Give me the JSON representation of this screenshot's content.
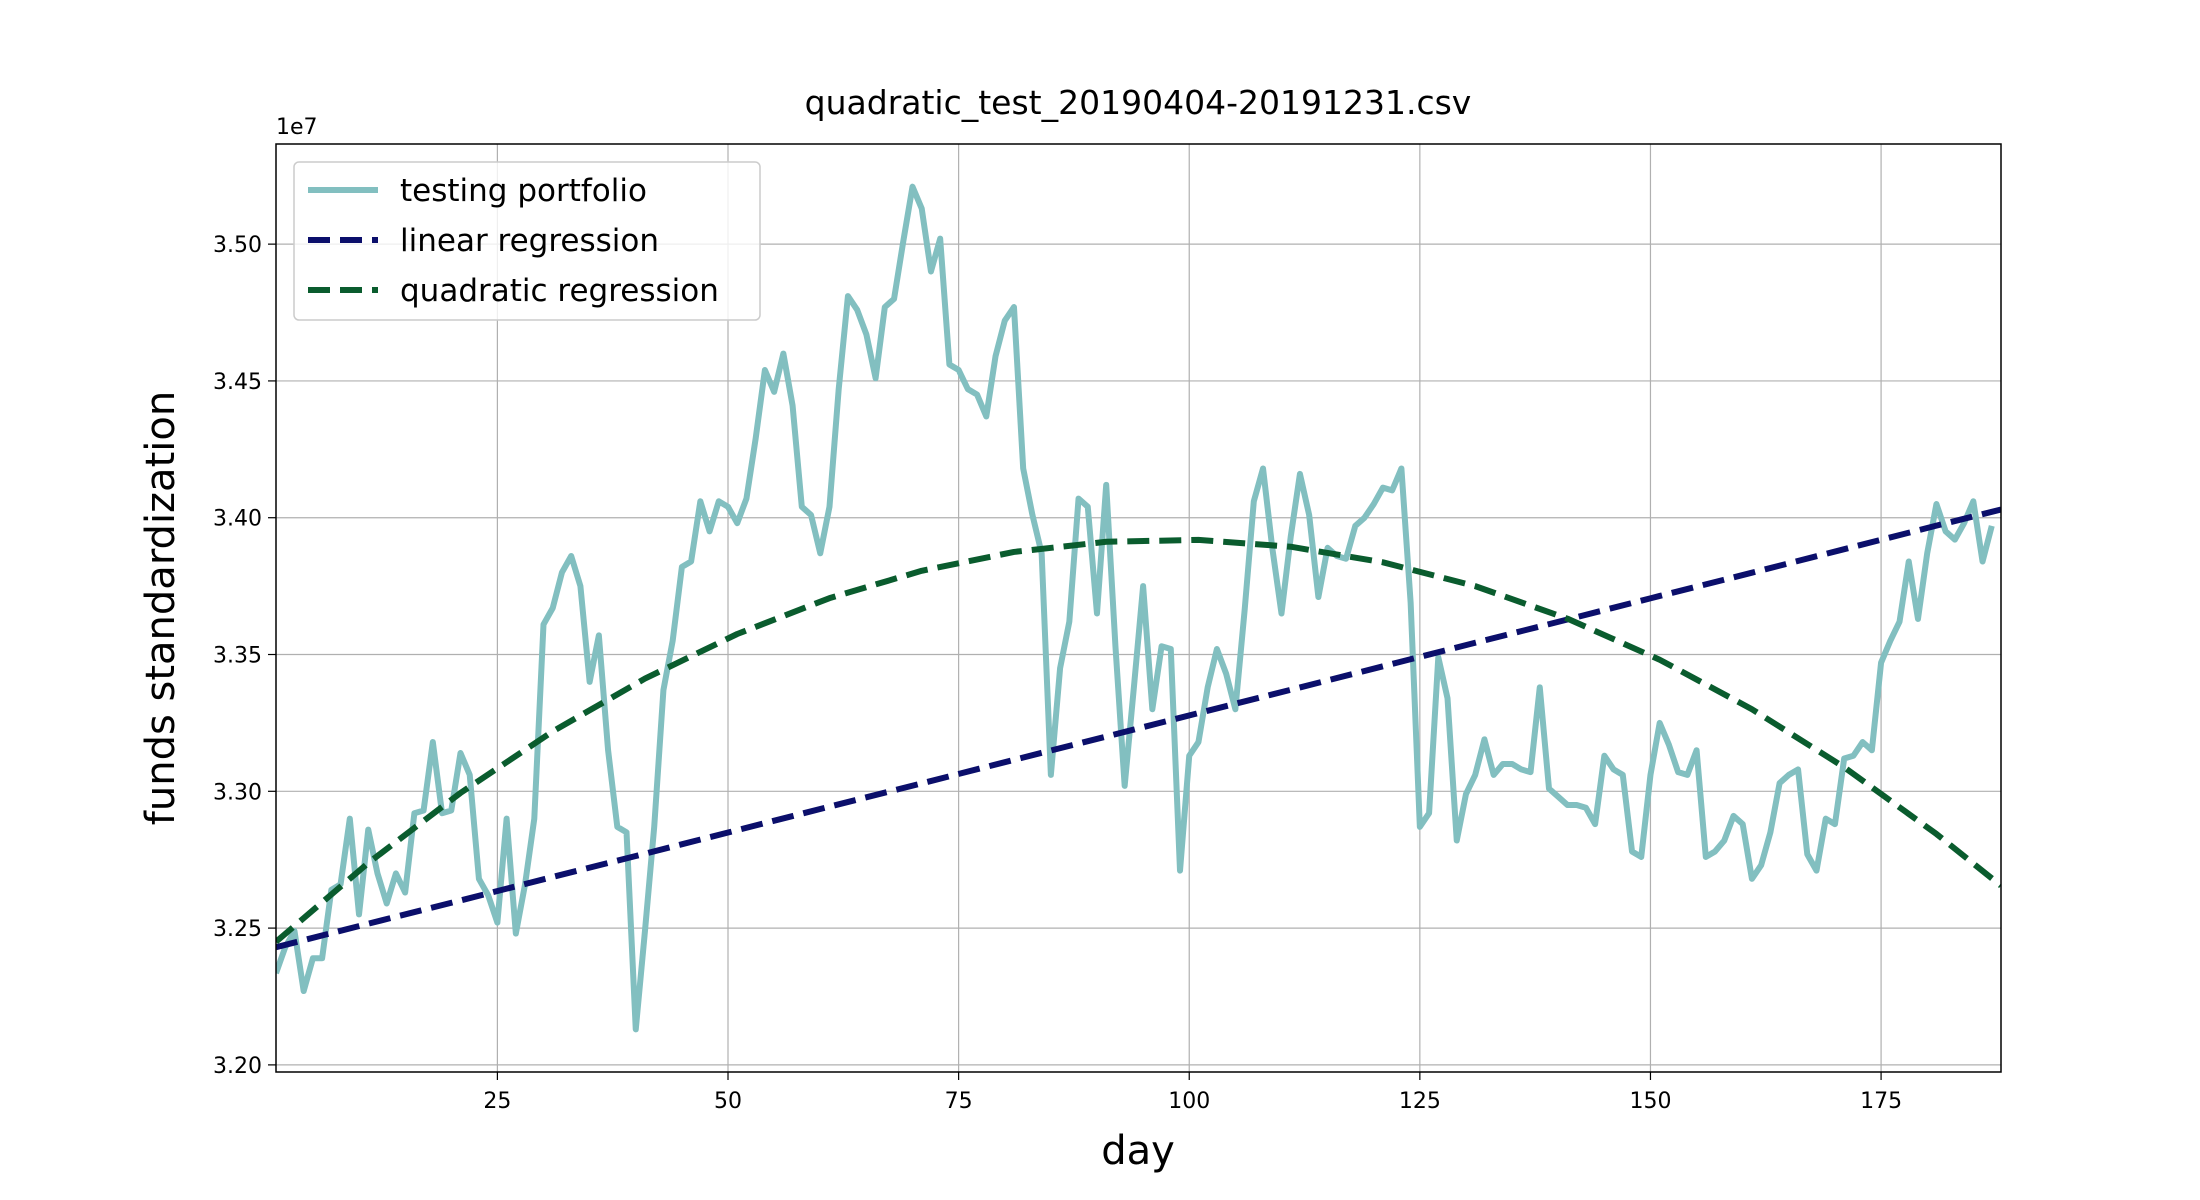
{
  "chart_data": {
    "type": "line",
    "title": "quadratic_test_20190404-20191231.csv",
    "xlabel": "day",
    "ylabel": "funds standardization",
    "y_offset_label": "1e7",
    "xlim": [
      1,
      188
    ],
    "ylim": [
      3.1974,
      3.5366
    ],
    "xticks": [
      25,
      50,
      75,
      100,
      125,
      150,
      175
    ],
    "yticks": [
      {
        "value": 3.2,
        "label": "3.20"
      },
      {
        "value": 3.25,
        "label": "3.25"
      },
      {
        "value": 3.3,
        "label": "3.30"
      },
      {
        "value": 3.35,
        "label": "3.35"
      },
      {
        "value": 3.4,
        "label": "3.40"
      },
      {
        "value": 3.45,
        "label": "3.45"
      },
      {
        "value": 3.5,
        "label": "3.50"
      }
    ],
    "grid": true,
    "legend": "upper left",
    "series": [
      {
        "name": "testing portfolio",
        "color": "#82bfc0",
        "linestyle": "solid",
        "x": [
          1,
          2,
          3,
          4,
          5,
          6,
          7,
          8,
          9,
          10,
          11,
          12,
          13,
          14,
          15,
          16,
          17,
          18,
          19,
          20,
          21,
          22,
          23,
          24,
          25,
          26,
          27,
          28,
          29,
          30,
          31,
          32,
          33,
          34,
          35,
          36,
          37,
          38,
          39,
          40,
          41,
          42,
          43,
          44,
          45,
          46,
          47,
          48,
          49,
          50,
          51,
          52,
          53,
          54,
          55,
          56,
          57,
          58,
          59,
          60,
          61,
          62,
          63,
          64,
          65,
          66,
          67,
          68,
          69,
          70,
          71,
          72,
          73,
          74,
          75,
          76,
          77,
          78,
          79,
          80,
          81,
          82,
          83,
          84,
          85,
          86,
          87,
          88,
          89,
          90,
          91,
          92,
          93,
          94,
          95,
          96,
          97,
          98,
          99,
          100,
          101,
          102,
          103,
          104,
          105,
          106,
          107,
          108,
          109,
          110,
          111,
          112,
          113,
          114,
          115,
          116,
          117,
          118,
          119,
          120,
          121,
          122,
          123,
          124,
          125,
          126,
          127,
          128,
          129,
          130,
          131,
          132,
          133,
          134,
          135,
          136,
          137,
          138,
          139,
          140,
          141,
          142,
          143,
          144,
          145,
          146,
          147,
          148,
          149,
          150,
          151,
          152,
          153,
          154,
          155,
          156,
          157,
          158,
          159,
          160,
          161,
          162,
          163,
          164,
          165,
          166,
          167,
          168,
          169,
          170,
          171,
          172,
          173,
          174,
          175,
          176,
          177,
          178,
          179,
          180,
          181,
          182,
          183,
          184,
          185,
          186,
          187
        ],
        "values": [
          3.2335,
          3.243,
          3.249,
          3.227,
          3.239,
          3.239,
          3.264,
          3.266,
          3.29,
          3.255,
          3.286,
          3.27,
          3.259,
          3.27,
          3.263,
          3.292,
          3.293,
          3.318,
          3.292,
          3.293,
          3.314,
          3.306,
          3.268,
          3.262,
          3.252,
          3.29,
          3.248,
          3.266,
          3.29,
          3.361,
          3.367,
          3.38,
          3.386,
          3.375,
          3.34,
          3.357,
          3.315,
          3.287,
          3.285,
          3.213,
          3.249,
          3.287,
          3.337,
          3.355,
          3.382,
          3.384,
          3.406,
          3.395,
          3.406,
          3.404,
          3.398,
          3.407,
          3.429,
          3.454,
          3.446,
          3.46,
          3.441,
          3.404,
          3.401,
          3.387,
          3.404,
          3.447,
          3.481,
          3.476,
          3.467,
          3.451,
          3.477,
          3.48,
          3.501,
          3.521,
          3.513,
          3.49,
          3.502,
          3.456,
          3.454,
          3.447,
          3.445,
          3.437,
          3.459,
          3.472,
          3.477,
          3.418,
          3.401,
          3.387,
          3.306,
          3.345,
          3.362,
          3.407,
          3.404,
          3.365,
          3.412,
          3.353,
          3.302,
          3.338,
          3.375,
          3.33,
          3.353,
          3.352,
          3.271,
          3.313,
          3.318,
          3.338,
          3.352,
          3.343,
          3.33,
          3.366,
          3.406,
          3.418,
          3.389,
          3.365,
          3.393,
          3.416,
          3.401,
          3.371,
          3.389,
          3.386,
          3.385,
          3.397,
          3.4,
          3.405,
          3.411,
          3.41,
          3.418,
          3.369,
          3.287,
          3.292,
          3.349,
          3.334,
          3.282,
          3.299,
          3.306,
          3.319,
          3.306,
          3.31,
          3.31,
          3.308,
          3.307,
          3.338,
          3.301,
          3.298,
          3.295,
          3.295,
          3.294,
          3.288,
          3.313,
          3.308,
          3.306,
          3.278,
          3.276,
          3.306,
          3.325,
          3.317,
          3.307,
          3.306,
          3.315,
          3.276,
          3.278,
          3.282,
          3.291,
          3.288,
          3.268,
          3.273,
          3.285,
          3.303,
          3.306,
          3.308,
          3.277,
          3.271,
          3.29,
          3.288,
          3.312,
          3.313,
          3.318,
          3.315,
          3.347,
          3.355,
          3.362,
          3.384,
          3.363,
          3.387,
          3.405,
          3.395,
          3.392,
          3.398,
          3.406,
          3.384,
          3.397
        ]
      },
      {
        "name": "linear regression",
        "color": "#0b0f6b",
        "linestyle": "dashed",
        "x": [
          1,
          11,
          21,
          31,
          41,
          51,
          61,
          71,
          81,
          91,
          101,
          111,
          121,
          131,
          141,
          151,
          161,
          171,
          181,
          188
        ],
        "values": [
          3.243,
          3.2516,
          3.2601,
          3.2687,
          3.2772,
          3.2858,
          3.2944,
          3.3029,
          3.3115,
          3.32,
          3.3286,
          3.3371,
          3.3457,
          3.3543,
          3.3628,
          3.3714,
          3.3799,
          3.3885,
          3.3971,
          3.403
        ]
      },
      {
        "name": "quadratic regression",
        "color": "#0a5c2e",
        "linestyle": "dashed",
        "x": [
          1,
          11,
          21,
          31,
          41,
          51,
          61,
          71,
          81,
          91,
          101,
          111,
          121,
          131,
          141,
          151,
          161,
          171,
          181,
          188
        ],
        "values": [
          3.245,
          3.2738,
          3.2994,
          3.3219,
          3.3412,
          3.3575,
          3.3706,
          3.3806,
          3.3875,
          3.3912,
          3.3919,
          3.3894,
          3.3837,
          3.375,
          3.3631,
          3.3481,
          3.33,
          3.3088,
          3.2844,
          3.2655
        ]
      }
    ]
  }
}
